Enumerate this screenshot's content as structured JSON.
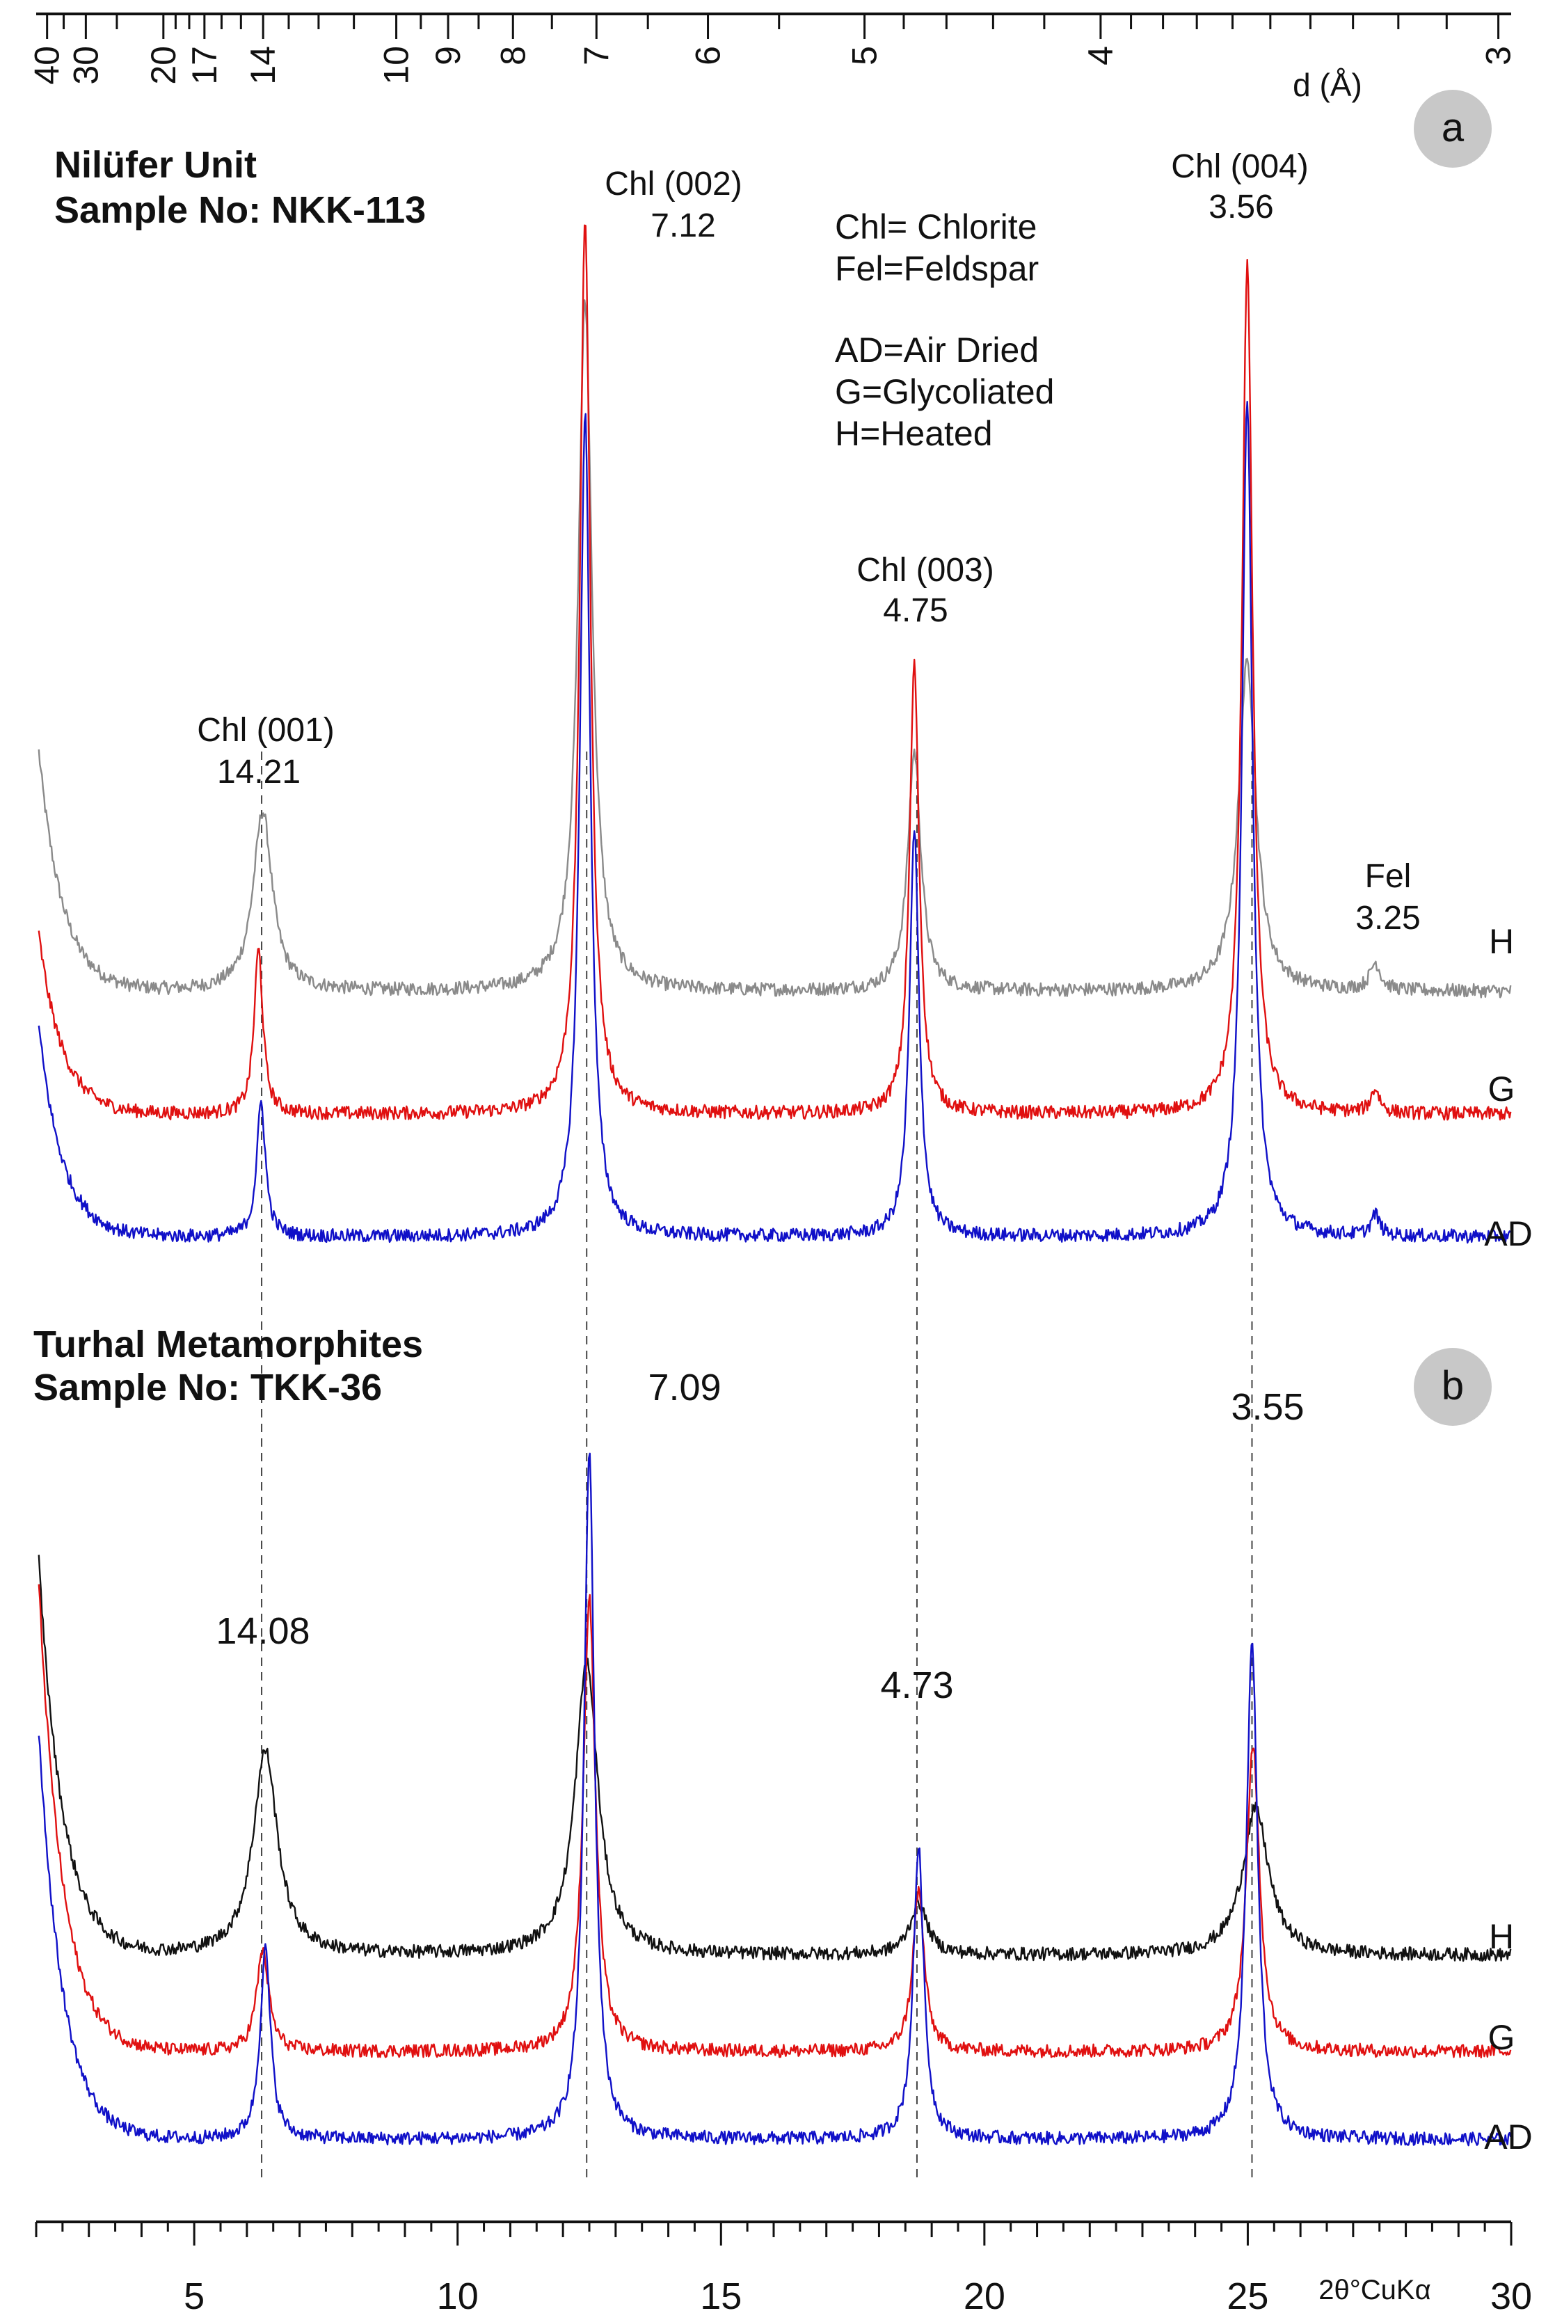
{
  "chart_data": {
    "type": "line",
    "x_axis": {
      "label": "2θ°CuKα",
      "range": [
        2,
        30
      ],
      "major_ticks": [
        5,
        10,
        15,
        20,
        25,
        30
      ],
      "tick_labels": [
        "5",
        "10",
        "15",
        "20",
        "25",
        "30"
      ]
    },
    "d_axis": {
      "label": "d (Å)",
      "ticks": [
        40,
        30,
        20,
        17,
        14,
        10,
        9,
        8,
        7,
        6,
        5,
        4,
        3
      ],
      "tick_labels": [
        "40",
        "30",
        "20",
        "17",
        "14",
        "10",
        "9",
        "8",
        "7",
        "6",
        "5",
        "4",
        "3"
      ],
      "wavelength": 1.5406
    },
    "legend": {
      "lines": [
        "Chl= Chlorite",
        "Fel=Feldspar",
        "AD=Air Dried",
        "G=Glycoliated",
        "H=Heated"
      ]
    },
    "panels": [
      {
        "badge": "a",
        "title": "Nilüfer Unit",
        "subtitle": "Sample No: NKK-113",
        "peak_labels": [
          {
            "name": "Chl (001)",
            "d": "14.21",
            "two_theta": 6.22
          },
          {
            "name": "Chl (002)",
            "d": "7.12",
            "two_theta": 12.42
          },
          {
            "name": "Chl (003)",
            "d": "4.75",
            "two_theta": 18.67
          },
          {
            "name": "Chl (004)",
            "d": "3.56",
            "two_theta": 24.99
          },
          {
            "name": "Fel",
            "d": "3.25",
            "two_theta": 27.42
          }
        ],
        "series": [
          {
            "name": "H",
            "color": "#8a8a8a",
            "baseline": 0.0,
            "low_angle_rise": 16,
            "peaks": [
              {
                "x": 6.3,
                "h": 12,
                "w": 0.22
              },
              {
                "x": 12.42,
                "h": 46,
                "w": 0.16
              },
              {
                "x": 18.67,
                "h": 16,
                "w": 0.15
              },
              {
                "x": 24.99,
                "h": 22,
                "w": 0.2
              },
              {
                "x": 27.42,
                "h": 1.8,
                "w": 0.12
              }
            ]
          },
          {
            "name": "G",
            "color": "#e01010",
            "baseline": -8.2,
            "low_angle_rise": 12,
            "peaks": [
              {
                "x": 6.22,
                "h": 11,
                "w": 0.1
              },
              {
                "x": 12.42,
                "h": 60,
                "w": 0.12
              },
              {
                "x": 18.67,
                "h": 30,
                "w": 0.11
              },
              {
                "x": 24.99,
                "h": 57,
                "w": 0.12
              },
              {
                "x": 27.42,
                "h": 1.6,
                "w": 0.1
              }
            ]
          },
          {
            "name": "AD",
            "color": "#1010c8",
            "baseline": -16.4,
            "low_angle_rise": 14,
            "peaks": [
              {
                "x": 6.27,
                "h": 9,
                "w": 0.1
              },
              {
                "x": 12.42,
                "h": 55,
                "w": 0.12
              },
              {
                "x": 18.67,
                "h": 27,
                "w": 0.11
              },
              {
                "x": 24.99,
                "h": 56,
                "w": 0.12
              },
              {
                "x": 27.42,
                "h": 1.4,
                "w": 0.1
              }
            ]
          }
        ]
      },
      {
        "badge": "b",
        "title": "Turhal Metamorphites",
        "subtitle": "Sample No: TKK-36",
        "peak_labels": [
          {
            "name": "",
            "d": "14.08",
            "two_theta": 6.28
          },
          {
            "name": "",
            "d": "7.09",
            "two_theta": 12.48
          },
          {
            "name": "",
            "d": "4.73",
            "two_theta": 18.75
          },
          {
            "name": "",
            "d": "3.55",
            "two_theta": 25.08
          }
        ],
        "series": [
          {
            "name": "H",
            "color": "#111111",
            "baseline": 0.0,
            "low_angle_rise": 27,
            "peaks": [
              {
                "x": 6.35,
                "h": 14,
                "w": 0.28
              },
              {
                "x": 12.45,
                "h": 20,
                "w": 0.26
              },
              {
                "x": 18.75,
                "h": 3.5,
                "w": 0.2
              },
              {
                "x": 25.15,
                "h": 10,
                "w": 0.3
              }
            ]
          },
          {
            "name": "G",
            "color": "#e01010",
            "baseline": -6.6,
            "low_angle_rise": 32,
            "peaks": [
              {
                "x": 6.3,
                "h": 7,
                "w": 0.14
              },
              {
                "x": 12.5,
                "h": 31,
                "w": 0.14
              },
              {
                "x": 18.75,
                "h": 11,
                "w": 0.13
              },
              {
                "x": 25.1,
                "h": 21,
                "w": 0.15
              }
            ]
          },
          {
            "name": "AD",
            "color": "#1010c8",
            "baseline": -12.6,
            "low_angle_rise": 28,
            "peaks": [
              {
                "x": 6.35,
                "h": 13,
                "w": 0.12
              },
              {
                "x": 12.5,
                "h": 47,
                "w": 0.12
              },
              {
                "x": 18.75,
                "h": 20,
                "w": 0.12
              },
              {
                "x": 25.08,
                "h": 34,
                "w": 0.13
              }
            ]
          }
        ]
      }
    ],
    "dashed_guides_two_theta": [
      6.28,
      12.45,
      18.72,
      25.08
    ]
  }
}
